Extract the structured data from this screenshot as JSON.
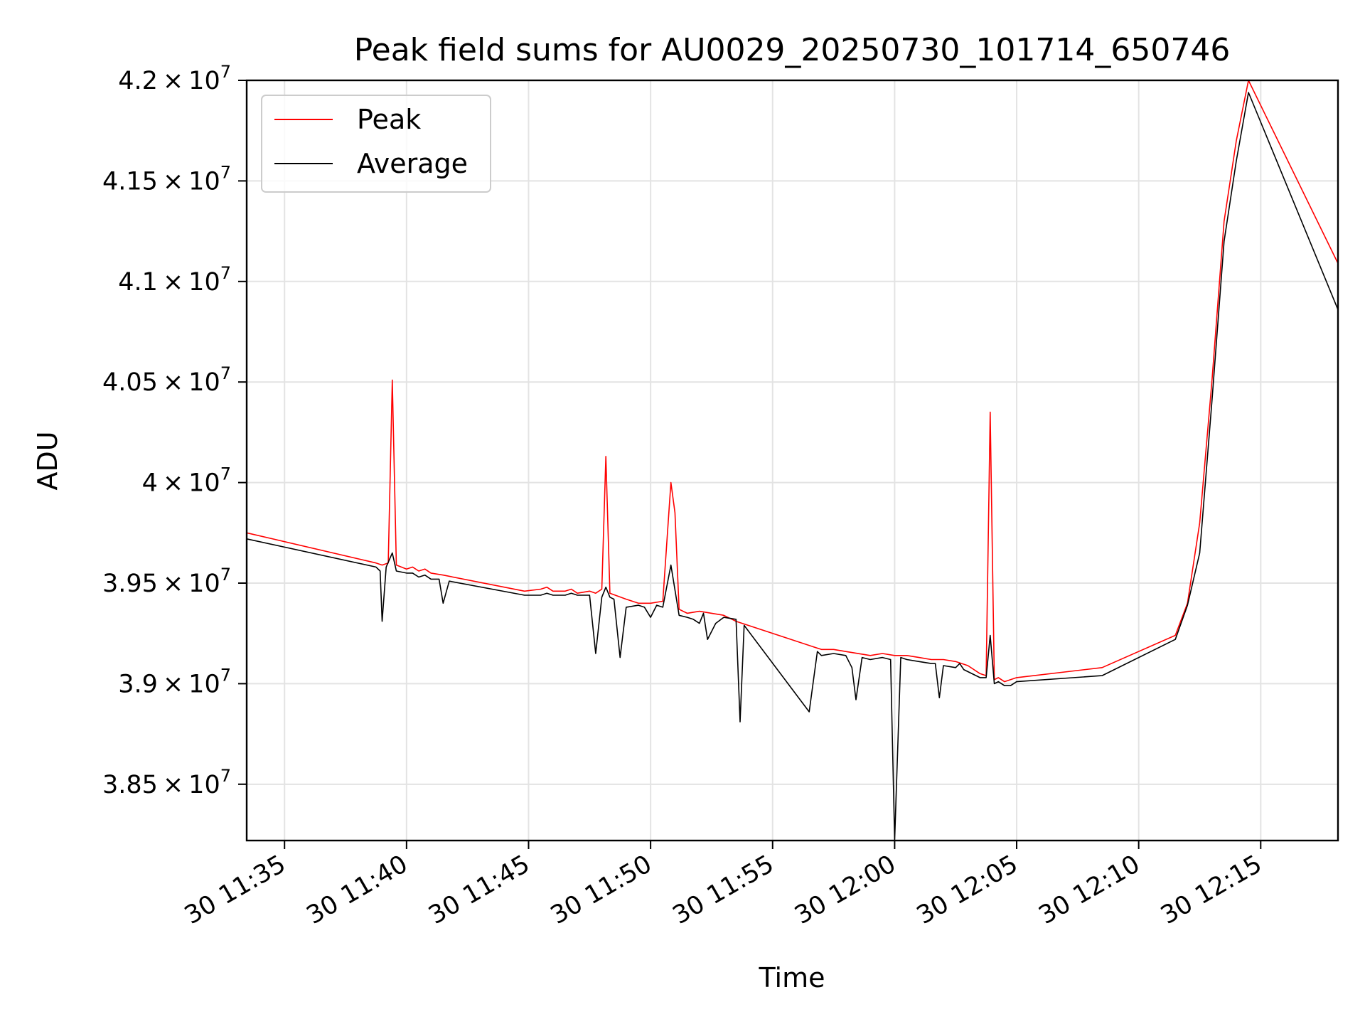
{
  "chart_data": {
    "type": "line",
    "title": "Peak field sums for AU0029_20250730_101714_650746",
    "xlabel": "Time",
    "ylabel": "ADU",
    "xlim": [
      "2025-07-30T11:33:27",
      "2025-07-30T12:18:10"
    ],
    "ylim": [
      38220000,
      42000000
    ],
    "grid": true,
    "legend": "top-left",
    "x_tick_labels": [
      "30 11:35",
      "30 11:40",
      "30 11:45",
      "30 11:50",
      "30 11:55",
      "30 12:00",
      "30 12:05",
      "30 12:10",
      "30 12:15"
    ],
    "x_ticks": [
      "2025-07-30T11:35:00",
      "2025-07-30T11:40:00",
      "2025-07-30T11:45:00",
      "2025-07-30T11:50:00",
      "2025-07-30T11:55:00",
      "2025-07-30T12:00:00",
      "2025-07-30T12:05:00",
      "2025-07-30T12:10:00",
      "2025-07-30T12:15:00"
    ],
    "y_ticks": [
      {
        "value": 38500000,
        "mantissa": "3.85",
        "exp": "7"
      },
      {
        "value": 39000000,
        "mantissa": "3.9",
        "exp": "7"
      },
      {
        "value": 39500000,
        "mantissa": "3.95",
        "exp": "7"
      },
      {
        "value": 40000000,
        "mantissa": "4",
        "exp": "7"
      },
      {
        "value": 40500000,
        "mantissa": "4.05",
        "exp": "7"
      },
      {
        "value": 41000000,
        "mantissa": "4.1",
        "exp": "7"
      },
      {
        "value": 41500000,
        "mantissa": "4.15",
        "exp": "7"
      },
      {
        "value": 42000000,
        "mantissa": "4.2",
        "exp": "7"
      }
    ],
    "series": [
      {
        "name": "Peak",
        "color": "#ff0000",
        "points": [
          [
            "2025-07-30T11:33:27",
            39750000
          ],
          [
            "2025-07-30T11:38:45",
            39600000
          ],
          [
            "2025-07-30T11:39:00",
            39590000
          ],
          [
            "2025-07-30T11:39:15",
            39600000
          ],
          [
            "2025-07-30T11:39:25",
            40510000
          ],
          [
            "2025-07-30T11:39:35",
            39590000
          ],
          [
            "2025-07-30T11:40:00",
            39570000
          ],
          [
            "2025-07-30T11:40:15",
            39580000
          ],
          [
            "2025-07-30T11:40:30",
            39560000
          ],
          [
            "2025-07-30T11:40:45",
            39570000
          ],
          [
            "2025-07-30T11:41:00",
            39550000
          ],
          [
            "2025-07-30T11:41:30",
            39540000
          ],
          [
            "2025-07-30T11:44:50",
            39460000
          ],
          [
            "2025-07-30T11:45:30",
            39470000
          ],
          [
            "2025-07-30T11:45:45",
            39480000
          ],
          [
            "2025-07-30T11:46:00",
            39460000
          ],
          [
            "2025-07-30T11:46:30",
            39460000
          ],
          [
            "2025-07-30T11:46:45",
            39470000
          ],
          [
            "2025-07-30T11:47:00",
            39450000
          ],
          [
            "2025-07-30T11:47:30",
            39460000
          ],
          [
            "2025-07-30T11:47:45",
            39450000
          ],
          [
            "2025-07-30T11:48:00",
            39470000
          ],
          [
            "2025-07-30T11:48:10",
            40130000
          ],
          [
            "2025-07-30T11:48:20",
            39450000
          ],
          [
            "2025-07-30T11:49:00",
            39420000
          ],
          [
            "2025-07-30T11:49:30",
            39400000
          ],
          [
            "2025-07-30T11:50:00",
            39400000
          ],
          [
            "2025-07-30T11:50:30",
            39410000
          ],
          [
            "2025-07-30T11:50:50",
            40000000
          ],
          [
            "2025-07-30T11:51:00",
            39850000
          ],
          [
            "2025-07-30T11:51:10",
            39370000
          ],
          [
            "2025-07-30T11:51:30",
            39350000
          ],
          [
            "2025-07-30T11:52:00",
            39360000
          ],
          [
            "2025-07-30T11:52:30",
            39350000
          ],
          [
            "2025-07-30T11:53:00",
            39340000
          ],
          [
            "2025-07-30T11:53:30",
            39310000
          ],
          [
            "2025-07-30T11:56:45",
            39180000
          ],
          [
            "2025-07-30T11:57:00",
            39170000
          ],
          [
            "2025-07-30T11:57:30",
            39170000
          ],
          [
            "2025-07-30T11:58:00",
            39160000
          ],
          [
            "2025-07-30T11:59:00",
            39140000
          ],
          [
            "2025-07-30T11:59:30",
            39150000
          ],
          [
            "2025-07-30T12:00:00",
            39140000
          ],
          [
            "2025-07-30T12:00:30",
            39140000
          ],
          [
            "2025-07-30T12:01:00",
            39130000
          ],
          [
            "2025-07-30T12:01:30",
            39120000
          ],
          [
            "2025-07-30T12:02:00",
            39120000
          ],
          [
            "2025-07-30T12:02:30",
            39110000
          ],
          [
            "2025-07-30T12:03:00",
            39090000
          ],
          [
            "2025-07-30T12:03:30",
            39050000
          ],
          [
            "2025-07-30T12:03:45",
            39040000
          ],
          [
            "2025-07-30T12:03:55",
            40350000
          ],
          [
            "2025-07-30T12:04:05",
            39020000
          ],
          [
            "2025-07-30T12:04:15",
            39030000
          ],
          [
            "2025-07-30T12:04:30",
            39010000
          ],
          [
            "2025-07-30T12:04:45",
            39020000
          ],
          [
            "2025-07-30T12:05:00",
            39030000
          ],
          [
            "2025-07-30T12:08:30",
            39080000
          ],
          [
            "2025-07-30T12:11:30",
            39240000
          ],
          [
            "2025-07-30T12:12:00",
            39400000
          ],
          [
            "2025-07-30T12:12:30",
            39800000
          ],
          [
            "2025-07-30T12:13:00",
            40500000
          ],
          [
            "2025-07-30T12:13:30",
            41300000
          ],
          [
            "2025-07-30T12:14:00",
            41700000
          ],
          [
            "2025-07-30T12:14:30",
            42000000
          ],
          [
            "2025-07-30T12:18:10",
            41090000
          ]
        ]
      },
      {
        "name": "Average",
        "color": "#000000",
        "points": [
          [
            "2025-07-30T11:33:27",
            39720000
          ],
          [
            "2025-07-30T11:38:45",
            39580000
          ],
          [
            "2025-07-30T11:38:55",
            39560000
          ],
          [
            "2025-07-30T11:39:00",
            39310000
          ],
          [
            "2025-07-30T11:39:10",
            39580000
          ],
          [
            "2025-07-30T11:39:25",
            39650000
          ],
          [
            "2025-07-30T11:39:35",
            39560000
          ],
          [
            "2025-07-30T11:40:00",
            39550000
          ],
          [
            "2025-07-30T11:40:15",
            39550000
          ],
          [
            "2025-07-30T11:40:30",
            39530000
          ],
          [
            "2025-07-30T11:40:45",
            39540000
          ],
          [
            "2025-07-30T11:41:00",
            39520000
          ],
          [
            "2025-07-30T11:41:20",
            39520000
          ],
          [
            "2025-07-30T11:41:30",
            39400000
          ],
          [
            "2025-07-30T11:41:45",
            39510000
          ],
          [
            "2025-07-30T11:44:50",
            39440000
          ],
          [
            "2025-07-30T11:45:30",
            39440000
          ],
          [
            "2025-07-30T11:45:45",
            39450000
          ],
          [
            "2025-07-30T11:46:00",
            39440000
          ],
          [
            "2025-07-30T11:46:30",
            39440000
          ],
          [
            "2025-07-30T11:46:45",
            39450000
          ],
          [
            "2025-07-30T11:47:00",
            39440000
          ],
          [
            "2025-07-30T11:47:30",
            39440000
          ],
          [
            "2025-07-30T11:47:45",
            39150000
          ],
          [
            "2025-07-30T11:48:00",
            39430000
          ],
          [
            "2025-07-30T11:48:10",
            39480000
          ],
          [
            "2025-07-30T11:48:20",
            39430000
          ],
          [
            "2025-07-30T11:48:30",
            39420000
          ],
          [
            "2025-07-30T11:48:45",
            39130000
          ],
          [
            "2025-07-30T11:49:00",
            39380000
          ],
          [
            "2025-07-30T11:49:30",
            39390000
          ],
          [
            "2025-07-30T11:49:45",
            39380000
          ],
          [
            "2025-07-30T11:50:00",
            39330000
          ],
          [
            "2025-07-30T11:50:15",
            39390000
          ],
          [
            "2025-07-30T11:50:30",
            39380000
          ],
          [
            "2025-07-30T11:50:50",
            39590000
          ],
          [
            "2025-07-30T11:51:10",
            39340000
          ],
          [
            "2025-07-30T11:51:30",
            39330000
          ],
          [
            "2025-07-30T11:51:45",
            39320000
          ],
          [
            "2025-07-30T11:52:00",
            39300000
          ],
          [
            "2025-07-30T11:52:10",
            39350000
          ],
          [
            "2025-07-30T11:52:20",
            39220000
          ],
          [
            "2025-07-30T11:52:40",
            39300000
          ],
          [
            "2025-07-30T11:53:00",
            39330000
          ],
          [
            "2025-07-30T11:53:30",
            39320000
          ],
          [
            "2025-07-30T11:53:40",
            38810000
          ],
          [
            "2025-07-30T11:53:50",
            39290000
          ],
          [
            "2025-07-30T11:56:30",
            38860000
          ],
          [
            "2025-07-30T11:56:50",
            39160000
          ],
          [
            "2025-07-30T11:57:00",
            39140000
          ],
          [
            "2025-07-30T11:57:30",
            39150000
          ],
          [
            "2025-07-30T11:58:00",
            39140000
          ],
          [
            "2025-07-30T11:58:15",
            39080000
          ],
          [
            "2025-07-30T11:58:25",
            38920000
          ],
          [
            "2025-07-30T11:58:40",
            39130000
          ],
          [
            "2025-07-30T11:59:00",
            39120000
          ],
          [
            "2025-07-30T11:59:30",
            39130000
          ],
          [
            "2025-07-30T11:59:50",
            39120000
          ],
          [
            "2025-07-30T12:00:00",
            38220000
          ],
          [
            "2025-07-30T12:00:15",
            39130000
          ],
          [
            "2025-07-30T12:00:30",
            39120000
          ],
          [
            "2025-07-30T12:01:00",
            39110000
          ],
          [
            "2025-07-30T12:01:30",
            39100000
          ],
          [
            "2025-07-30T12:01:40",
            39100000
          ],
          [
            "2025-07-30T12:01:50",
            38930000
          ],
          [
            "2025-07-30T12:02:00",
            39090000
          ],
          [
            "2025-07-30T12:02:30",
            39080000
          ],
          [
            "2025-07-30T12:02:40",
            39100000
          ],
          [
            "2025-07-30T12:02:50",
            39070000
          ],
          [
            "2025-07-30T12:03:30",
            39030000
          ],
          [
            "2025-07-30T12:03:45",
            39030000
          ],
          [
            "2025-07-30T12:03:55",
            39240000
          ],
          [
            "2025-07-30T12:04:05",
            39000000
          ],
          [
            "2025-07-30T12:04:15",
            39010000
          ],
          [
            "2025-07-30T12:04:30",
            38990000
          ],
          [
            "2025-07-30T12:04:45",
            38990000
          ],
          [
            "2025-07-30T12:05:00",
            39010000
          ],
          [
            "2025-07-30T12:08:30",
            39040000
          ],
          [
            "2025-07-30T12:11:30",
            39220000
          ],
          [
            "2025-07-30T12:12:00",
            39390000
          ],
          [
            "2025-07-30T12:12:30",
            39650000
          ],
          [
            "2025-07-30T12:13:00",
            40400000
          ],
          [
            "2025-07-30T12:13:30",
            41200000
          ],
          [
            "2025-07-30T12:14:00",
            41600000
          ],
          [
            "2025-07-30T12:14:30",
            41940000
          ],
          [
            "2025-07-30T12:18:10",
            40860000
          ]
        ]
      }
    ]
  }
}
